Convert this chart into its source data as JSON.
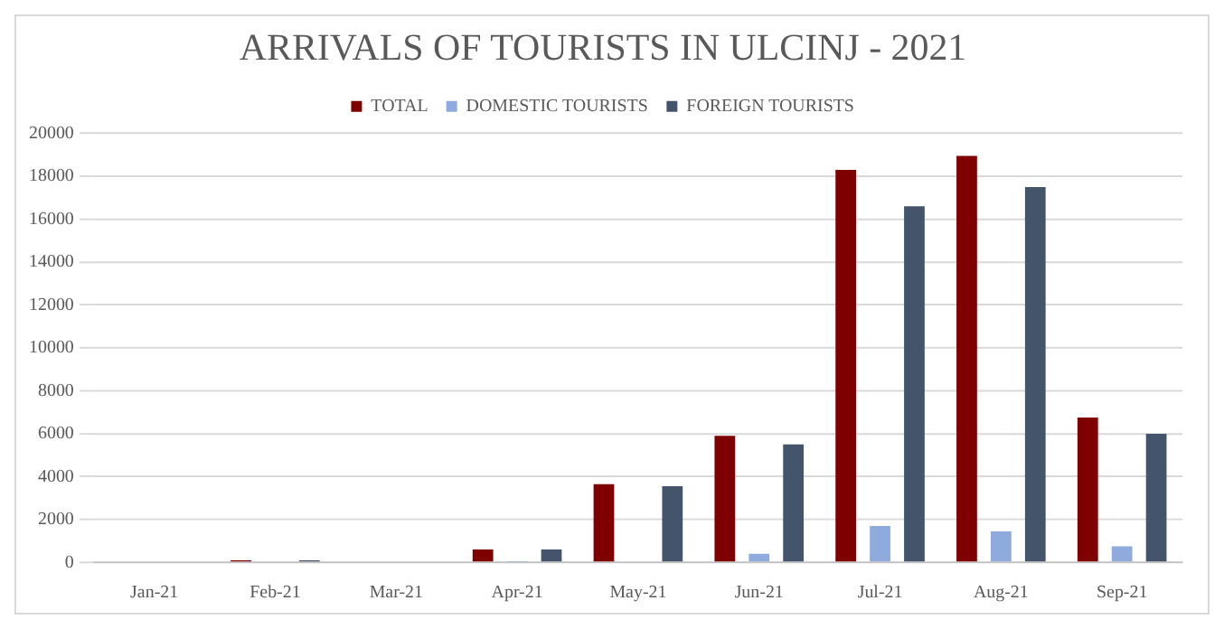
{
  "chart_data": {
    "type": "bar",
    "title": "ARRIVALS OF TOURISTS IN ULCINJ - 2021",
    "categories": [
      "Jan-21",
      "Feb-21",
      "Mar-21",
      "Apr-21",
      "May-21",
      "Jun-21",
      "Jul-21",
      "Aug-21",
      "Sep-21"
    ],
    "series": [
      {
        "name": "TOTAL",
        "color": "#7f0000",
        "values": [
          0,
          100,
          0,
          600,
          3650,
          5900,
          18300,
          18950,
          6750
        ]
      },
      {
        "name": "DOMESTIC TOURISTS",
        "color": "#8faadc",
        "values": [
          0,
          0,
          0,
          20,
          50,
          400,
          1700,
          1450,
          750
        ]
      },
      {
        "name": "FOREIGN TOURISTS",
        "color": "#44546a",
        "values": [
          0,
          100,
          0,
          600,
          3550,
          5500,
          16600,
          17500,
          6000
        ]
      }
    ],
    "ylim": [
      0,
      20000
    ],
    "yticks": [
      0,
      2000,
      4000,
      6000,
      8000,
      10000,
      12000,
      14000,
      16000,
      18000,
      20000
    ],
    "grid": "y",
    "legend": "top"
  }
}
